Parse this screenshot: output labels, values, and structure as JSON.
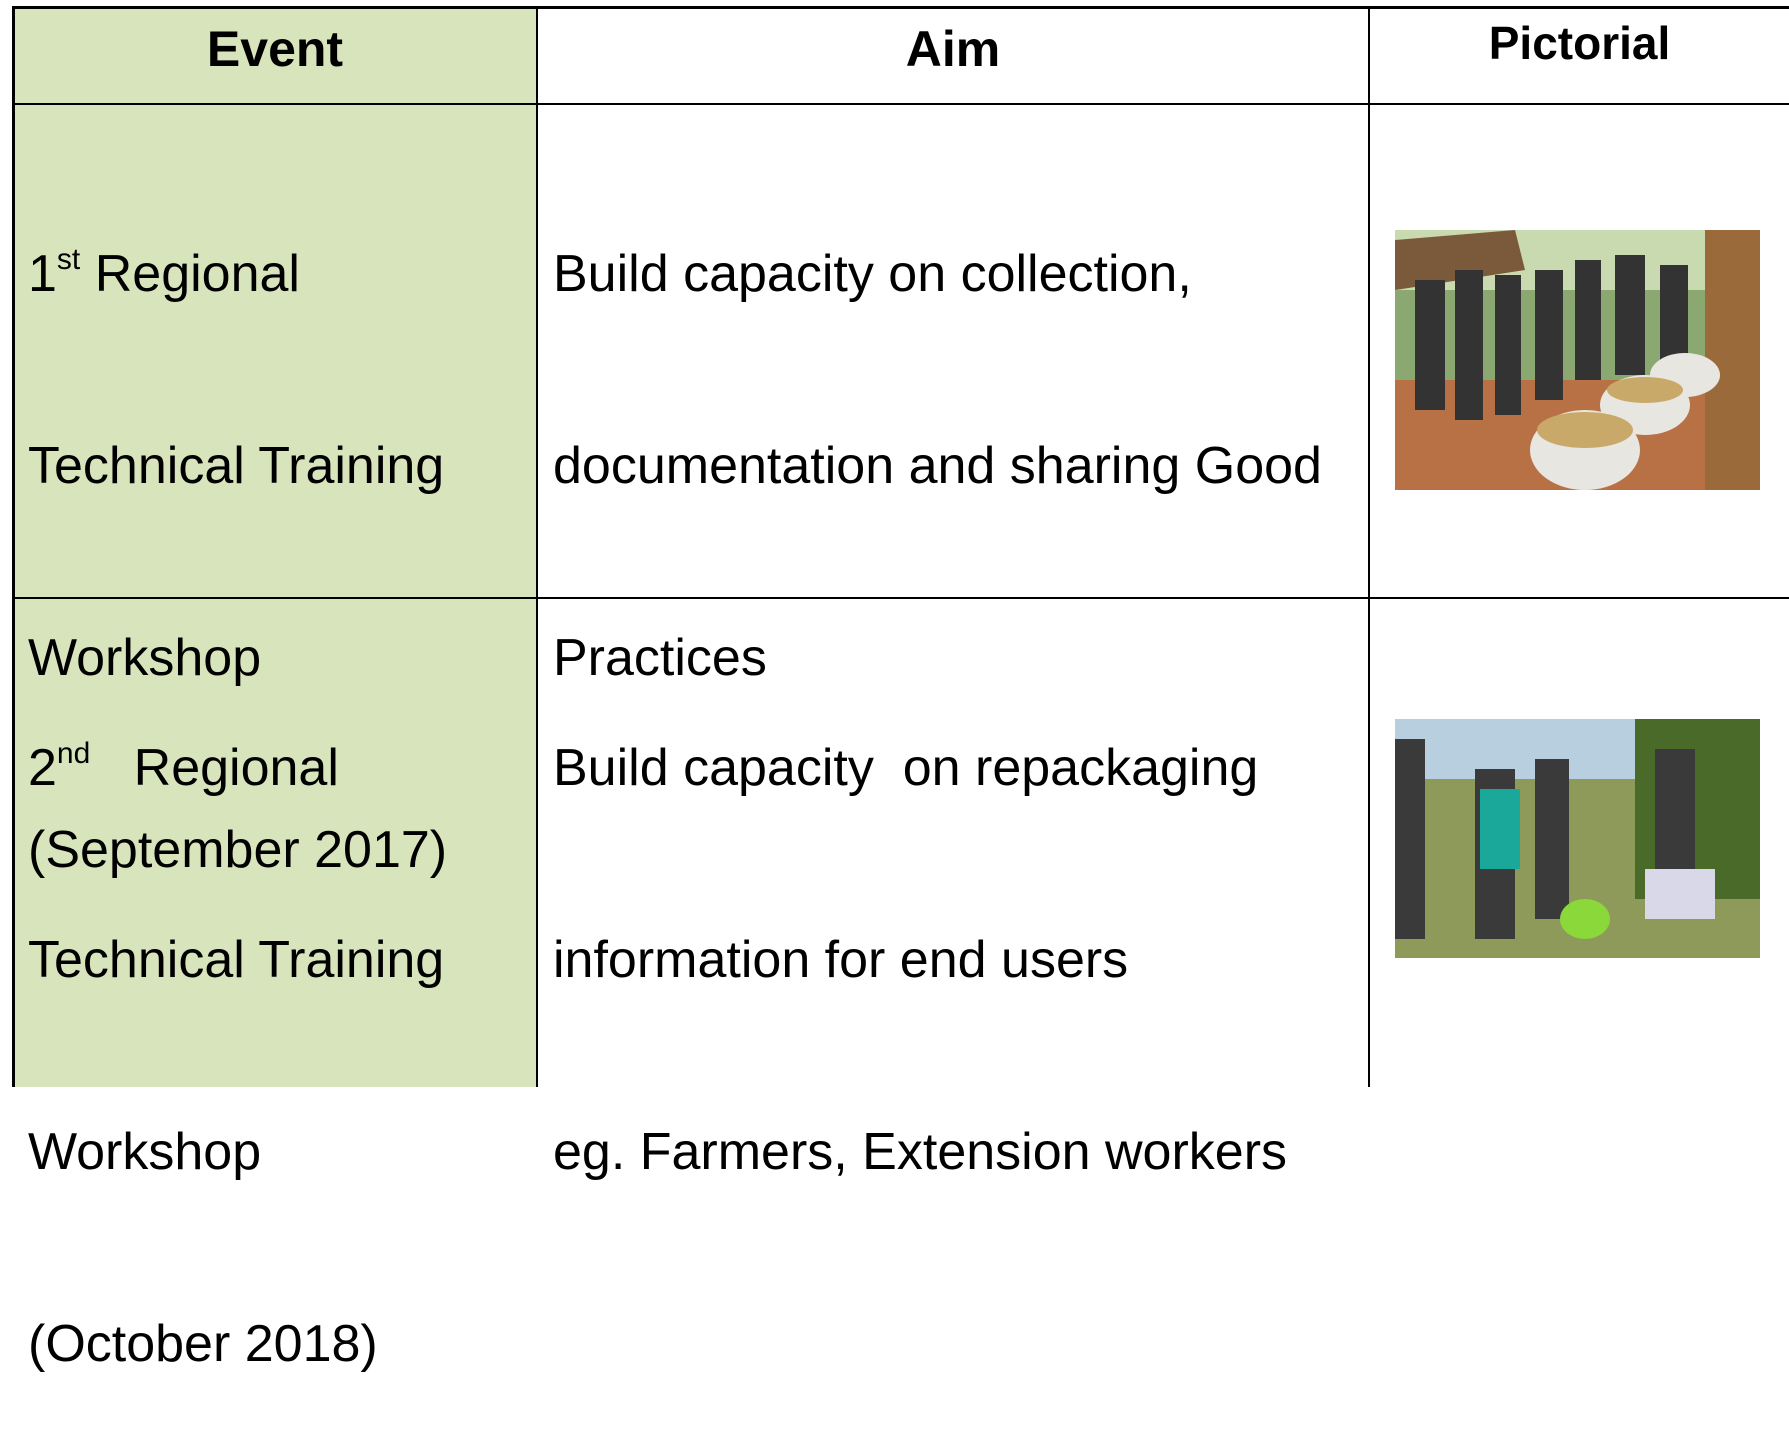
{
  "table": {
    "header": [
      "Event",
      "Aim",
      "Pictorial"
    ],
    "rows": [
      {
        "event": {
          "ordinal": "1",
          "suffix": "st",
          "lines": [
            "Regional",
            "Technical Training",
            "Workshop",
            "(September 2017)"
          ]
        },
        "aim": [
          "Build capacity on collection,",
          "documentation and sharing Good",
          "Practices"
        ]
      },
      {
        "event": {
          "ordinal": "2",
          "suffix": "nd",
          "lines": [
            "Regional",
            "Technical Training",
            "Workshop",
            "(October 2018)"
          ]
        },
        "aim": [
          "Build capacity  on repackaging",
          "information for end users",
          "eg. Farmers, Extension workers"
        ]
      }
    ]
  }
}
